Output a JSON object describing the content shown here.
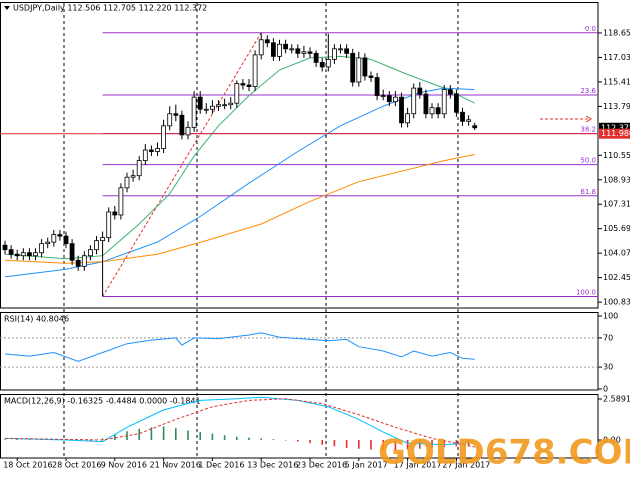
{
  "chart_data": {
    "type": "candlestick",
    "title": "USDJPY,Daily 112.506 112.705 112.220 112.372",
    "open": [
      104.6,
      104.3,
      104.0,
      103.9,
      104.1,
      103.9,
      104.1,
      104.7,
      104.8,
      105.3,
      105.2,
      104.7,
      103.6,
      103.2,
      103.9,
      104.3,
      104.9,
      105.1,
      106.8,
      106.6,
      108.4,
      109.1,
      109.2,
      110.2,
      110.9,
      110.8,
      111.0,
      112.5,
      113.3,
      113.2,
      111.9,
      112.4,
      114.4,
      113.6,
      113.6,
      113.8,
      113.9,
      113.9,
      114.0,
      115.3,
      115.2,
      115.1,
      117.2,
      118.2,
      118.0,
      117.1,
      117.9,
      117.6,
      117.6,
      117.3,
      117.4,
      117.3,
      116.7,
      116.4,
      116.9,
      117.6,
      117.6,
      117.3,
      115.4,
      117.0,
      115.8,
      115.7,
      114.5,
      114.5,
      114.1,
      114.4,
      112.7,
      113.3,
      115.0,
      114.6,
      113.3,
      113.7,
      113.3,
      114.9,
      114.6,
      113.4,
      112.8,
      112.506
    ],
    "high": [
      104.9,
      104.6,
      104.3,
      104.4,
      104.4,
      104.4,
      105.0,
      105.1,
      105.6,
      105.6,
      105.5,
      105.0,
      103.9,
      104.2,
      104.6,
      105.2,
      105.5,
      107.1,
      107.2,
      108.7,
      109.4,
      109.6,
      110.5,
      111.3,
      111.2,
      111.4,
      112.9,
      113.8,
      113.9,
      113.5,
      112.8,
      114.8,
      114.8,
      114.0,
      114.2,
      114.2,
      114.3,
      114.4,
      115.5,
      115.6,
      115.6,
      117.5,
      118.66,
      118.5,
      118.3,
      118.2,
      118.2,
      117.9,
      117.9,
      117.8,
      117.7,
      117.5,
      117.0,
      118.6,
      117.9,
      117.9,
      117.9,
      117.6,
      117.4,
      117.3,
      116.1,
      116.0,
      114.9,
      114.8,
      114.8,
      114.7,
      113.7,
      115.3,
      115.4,
      114.9,
      114.0,
      114.0,
      115.2,
      115.2,
      114.9,
      113.7,
      113.2,
      112.705
    ],
    "low": [
      104.0,
      103.7,
      103.6,
      103.6,
      103.6,
      103.6,
      103.8,
      104.4,
      104.5,
      104.9,
      104.4,
      103.3,
      102.9,
      102.9,
      103.6,
      104.0,
      101.2,
      104.8,
      106.3,
      106.3,
      108.1,
      108.8,
      108.9,
      109.9,
      110.5,
      110.5,
      110.7,
      112.2,
      112.8,
      111.6,
      111.6,
      112.1,
      113.3,
      113.3,
      113.3,
      113.5,
      113.6,
      113.6,
      113.7,
      114.9,
      114.8,
      114.8,
      116.9,
      117.7,
      116.8,
      116.8,
      117.3,
      117.3,
      117.0,
      117.0,
      117.0,
      116.4,
      116.1,
      116.1,
      116.6,
      117.3,
      117.0,
      115.1,
      115.1,
      115.5,
      115.4,
      114.2,
      114.2,
      113.8,
      113.8,
      112.4,
      112.4,
      113.0,
      114.3,
      113.0,
      113.0,
      113.0,
      113.0,
      114.3,
      113.1,
      112.5,
      112.5,
      112.22
    ],
    "close": [
      104.3,
      104.0,
      103.9,
      104.1,
      103.9,
      104.1,
      104.7,
      104.8,
      105.3,
      105.2,
      104.7,
      103.6,
      103.2,
      103.9,
      104.3,
      104.9,
      105.1,
      106.8,
      106.6,
      108.4,
      109.1,
      109.2,
      110.2,
      110.9,
      110.8,
      111.0,
      112.5,
      113.3,
      113.2,
      111.9,
      112.4,
      114.4,
      113.6,
      113.6,
      113.8,
      113.9,
      113.9,
      114.0,
      115.3,
      115.2,
      115.1,
      117.2,
      118.2,
      118.0,
      117.1,
      117.9,
      117.6,
      117.6,
      117.3,
      117.4,
      117.3,
      116.7,
      116.4,
      116.9,
      117.6,
      117.6,
      117.3,
      115.4,
      117.0,
      115.8,
      115.7,
      114.5,
      114.5,
      114.1,
      114.4,
      112.7,
      113.3,
      115.0,
      114.6,
      113.3,
      113.7,
      113.3,
      114.9,
      114.6,
      113.4,
      112.8,
      112.9,
      112.372
    ],
    "bull_color": "#ffffff",
    "bear_color": "#000000",
    "xlim": [
      -0.82,
      97.21
    ],
    "ylim": [
      100.44,
      120.7
    ],
    "yticks": [
      {
        "value": 118.65,
        "label": "118.650"
      },
      {
        "value": 117.03,
        "label": "117.030"
      },
      {
        "value": 115.41,
        "label": "115.410"
      },
      {
        "value": 113.79,
        "label": "113.790"
      },
      {
        "value": 110.55,
        "label": "110.550"
      },
      {
        "value": 108.93,
        "label": "108.930"
      },
      {
        "value": 107.31,
        "label": "107.310"
      },
      {
        "value": 105.69,
        "label": "105.690"
      },
      {
        "value": 104.07,
        "label": "104.070"
      },
      {
        "value": 102.45,
        "label": "102.450"
      },
      {
        "value": 100.83,
        "label": "100.830"
      }
    ],
    "xticks": [
      {
        "value": 2,
        "label": "18 Oct 2016"
      },
      {
        "value": 10,
        "label": "28 Oct 2016"
      },
      {
        "value": 18,
        "label": "9 Nov 2016"
      },
      {
        "value": 26,
        "label": "21 Nov 2016"
      },
      {
        "value": 34,
        "label": "1 Dec 2016"
      },
      {
        "value": 42,
        "label": "13 Dec 2016"
      },
      {
        "value": 50,
        "label": "23 Dec 2016"
      },
      {
        "value": 58,
        "label": "5 Jan 2017"
      },
      {
        "value": 66,
        "label": "17 Jan 2017"
      },
      {
        "value": 74,
        "label": "27 Jan 2017"
      }
    ],
    "moving_averages": [
      {
        "color": "#3cb371",
        "x": [
          0,
          10,
          16,
          22,
          27,
          31,
          35,
          40,
          45,
          50,
          55,
          60,
          66,
          72,
          77
        ],
        "values": [
          104.0,
          103.7,
          103.9,
          106.0,
          108.0,
          110.5,
          112.5,
          114.5,
          116.2,
          117.0,
          117.1,
          116.9,
          115.9,
          115.0,
          114.0
        ]
      },
      {
        "color": "#1e90ff",
        "x": [
          0,
          10,
          16,
          25,
          32,
          40,
          48,
          55,
          62,
          68,
          72,
          77
        ],
        "values": [
          102.5,
          103.0,
          103.5,
          104.8,
          106.5,
          108.7,
          110.8,
          112.5,
          113.8,
          114.7,
          115.0,
          114.9
        ]
      },
      {
        "color": "#ff8c00",
        "x": [
          0,
          10,
          16,
          25,
          33,
          42,
          50,
          58,
          66,
          72,
          77
        ],
        "values": [
          103.6,
          103.4,
          103.5,
          104.0,
          104.9,
          106.0,
          107.5,
          108.8,
          109.6,
          110.2,
          110.6
        ]
      }
    ],
    "trend_line": {
      "color": "#e03030",
      "x": [
        16,
        42
      ],
      "values": [
        101.2,
        118.66
      ]
    },
    "fibonacci": {
      "color": "#9932cc",
      "levels": [
        {
          "label": "0.0",
          "value": 118.66
        },
        {
          "label": "23.6",
          "value": 114.54
        },
        {
          "label": "38.2",
          "value": 111.99
        },
        {
          "label": "50.0",
          "value": 109.93
        },
        {
          "label": "61.8",
          "value": 107.87
        },
        {
          "label": "100.0",
          "value": 101.2
        }
      ]
    },
    "price_lines": [
      {
        "value": 112.372,
        "color": "#000000"
      },
      {
        "value": 111.98,
        "label": "111.980",
        "color": "#e03030"
      }
    ],
    "rsi": {
      "title": "RSI(14) 40.8046",
      "color": "#1e90ff",
      "ylim": [
        -1.4,
        105.5
      ],
      "yticks": [
        100,
        70,
        30,
        0
      ],
      "levels": [
        70,
        30
      ],
      "x": [
        0,
        4,
        8,
        12,
        16,
        20,
        24,
        28,
        29,
        31,
        35,
        40,
        42,
        45,
        50,
        53,
        56,
        58,
        62,
        65,
        67,
        70,
        73,
        75,
        77
      ],
      "values": [
        48,
        45,
        50,
        38,
        50,
        62,
        67,
        70,
        60,
        70,
        69,
        74,
        77,
        71,
        68,
        66,
        68,
        58,
        52,
        44,
        52,
        45,
        50,
        42,
        40.8046
      ]
    },
    "macd": {
      "title": "MACD(12,26,9) -0.16325 -0.4484 0.0000 -0.1841",
      "ylim": [
        -1.137,
        2.905
      ],
      "yticks": [
        2.5891,
        {
          "value": 0,
          "label": "0.00"
        }
      ],
      "main": {
        "color": "#00bfff",
        "x": [
          0,
          10,
          16,
          20,
          26,
          32,
          38,
          42,
          48,
          53,
          58,
          62,
          66,
          72,
          77
        ],
        "values": [
          0.1,
          0.0,
          -0.1,
          0.8,
          1.9,
          2.5,
          2.6,
          2.7,
          2.5,
          2.1,
          1.3,
          0.5,
          -0.2,
          -0.3,
          -0.16325
        ]
      },
      "signal": {
        "color": "#e03030",
        "x": [
          0,
          16,
          22,
          28,
          34,
          40,
          46,
          52,
          58,
          64,
          70,
          77
        ],
        "values": [
          0.1,
          0.0,
          0.4,
          1.3,
          2.1,
          2.5,
          2.6,
          2.3,
          1.6,
          0.8,
          0.1,
          -0.4484
        ]
      },
      "histogram": {
        "up_color": "#2e8b57",
        "down_color": "#e03030",
        "x": [
          0,
          2,
          4,
          6,
          8,
          10,
          12,
          14,
          16,
          18,
          20,
          22,
          24,
          26,
          28,
          30,
          32,
          34,
          36,
          38,
          40,
          42,
          44,
          46,
          48,
          50,
          52,
          54,
          56,
          58,
          60,
          62,
          64,
          66,
          68,
          70,
          72,
          74,
          76
        ],
        "values": [
          0.05,
          0.06,
          0.05,
          0.04,
          0.03,
          0.0,
          -0.05,
          -0.05,
          0.1,
          0.35,
          0.55,
          0.7,
          0.8,
          0.85,
          0.75,
          0.6,
          0.5,
          0.4,
          0.3,
          0.2,
          0.15,
          0.1,
          0.05,
          0.0,
          -0.1,
          -0.2,
          -0.3,
          -0.4,
          -0.5,
          -0.55,
          -0.6,
          -0.65,
          -0.65,
          -0.6,
          -0.55,
          -0.5,
          -0.45,
          -0.4,
          -0.35
        ]
      }
    },
    "watermark": "GOLD678.COM"
  }
}
